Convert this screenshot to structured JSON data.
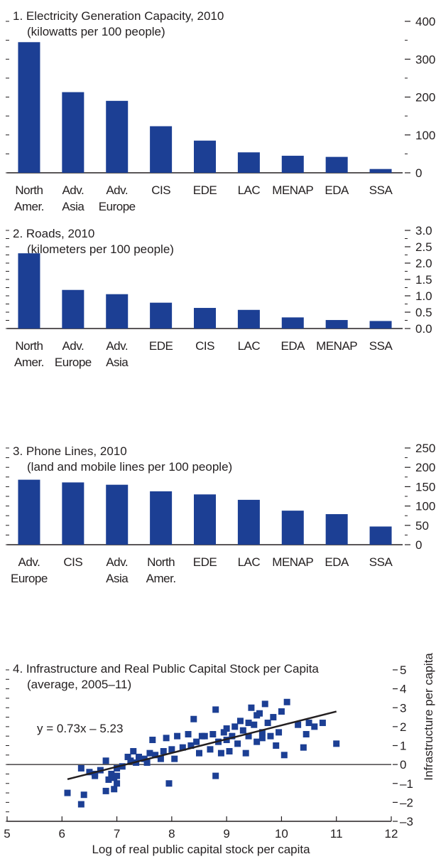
{
  "colors": {
    "bar": "#1c3f94",
    "point": "#1c3f94",
    "axis": "#231f20",
    "fit": "#231f20"
  },
  "chart_data": [
    {
      "type": "bar",
      "title": "1. Electricity Generation Capacity, 2010",
      "subtitle": "(kilowatts per 100 people)",
      "categories": [
        [
          "North",
          "Amer."
        ],
        [
          "Adv.",
          "Asia"
        ],
        [
          "Adv.",
          "Europe"
        ],
        [
          "CIS"
        ],
        [
          "EDE"
        ],
        [
          "LAC"
        ],
        [
          "MENAP"
        ],
        [
          "EDA"
        ],
        [
          "SSA"
        ]
      ],
      "values": [
        345,
        213,
        190,
        123,
        85,
        54,
        45,
        42,
        10
      ],
      "ylim": [
        0,
        400
      ],
      "yticks": [
        "0",
        "100",
        "200",
        "300",
        "400"
      ]
    },
    {
      "type": "bar",
      "title": "2. Roads, 2010",
      "subtitle": "(kilometers per 100 people)",
      "categories": [
        [
          "North",
          "Amer."
        ],
        [
          "Adv.",
          "Europe"
        ],
        [
          "Adv.",
          "Asia"
        ],
        [
          "EDE"
        ],
        [
          "CIS"
        ],
        [
          "LAC"
        ],
        [
          "EDA"
        ],
        [
          "MENAP"
        ],
        [
          "SSA"
        ]
      ],
      "values": [
        2.3,
        1.18,
        1.05,
        0.79,
        0.63,
        0.57,
        0.34,
        0.26,
        0.23
      ],
      "ylim": [
        0,
        3
      ],
      "yticks": [
        "0.0",
        "0.5",
        "1.0",
        "1.5",
        "2.0",
        "2.5",
        "3.0"
      ]
    },
    {
      "type": "bar",
      "title": "3. Phone Lines, 2010",
      "subtitle": "(land and mobile lines per 100 people)",
      "categories": [
        [
          "Adv.",
          "Europe"
        ],
        [
          "CIS"
        ],
        [
          "Adv.",
          "Asia"
        ],
        [
          "North",
          "Amer."
        ],
        [
          "EDE"
        ],
        [
          "LAC"
        ],
        [
          "MENAP"
        ],
        [
          "EDA"
        ],
        [
          "SSA"
        ]
      ],
      "values": [
        168,
        161,
        155,
        138,
        130,
        116,
        88,
        79,
        47
      ],
      "ylim": [
        0,
        250
      ],
      "yticks": [
        "0",
        "50",
        "100",
        "150",
        "200",
        "250"
      ]
    },
    {
      "type": "scatter",
      "title": "4. Infrastructure and Real Public Capital Stock per Capita",
      "subtitle": "(average, 2005–11)",
      "xlabel": "Log of real public capital stock per capita",
      "ylabel": "Infrastructure per capita",
      "annotation": "y = 0.73x – 5.23",
      "xlim": [
        5,
        12
      ],
      "ylim": [
        -3,
        5
      ],
      "xticks": [
        "5",
        "6",
        "7",
        "8",
        "9",
        "10",
        "11",
        "12"
      ],
      "yticks": [
        "–3",
        "–2",
        "–1",
        "0",
        "1",
        "2",
        "3",
        "4",
        "5"
      ],
      "fit": {
        "slope": 0.73,
        "intercept": -5.23,
        "x": [
          6.1,
          11.0
        ]
      },
      "points": [
        [
          6.1,
          -1.5
        ],
        [
          6.35,
          -2.1
        ],
        [
          6.4,
          -1.6
        ],
        [
          6.35,
          -0.2
        ],
        [
          6.5,
          -0.4
        ],
        [
          6.6,
          -0.5
        ],
        [
          6.7,
          -0.3
        ],
        [
          6.8,
          0.2
        ],
        [
          6.85,
          -0.8
        ],
        [
          6.9,
          -0.5
        ],
        [
          6.95,
          -0.7
        ],
        [
          7.0,
          -0.2
        ],
        [
          7.0,
          -1.0
        ],
        [
          6.95,
          -1.3
        ],
        [
          6.8,
          -1.4
        ],
        [
          7.0,
          -0.6
        ],
        [
          7.1,
          -0.1
        ],
        [
          7.2,
          0.4
        ],
        [
          7.25,
          0.2
        ],
        [
          7.3,
          0.7
        ],
        [
          7.4,
          0.4
        ],
        [
          7.5,
          0.3
        ],
        [
          7.55,
          0.1
        ],
        [
          7.6,
          0.6
        ],
        [
          7.65,
          1.3
        ],
        [
          7.7,
          0.5
        ],
        [
          7.8,
          0.3
        ],
        [
          7.85,
          0.7
        ],
        [
          7.9,
          1.4
        ],
        [
          7.95,
          -1.0
        ],
        [
          8.0,
          0.8
        ],
        [
          8.05,
          0.3
        ],
        [
          8.1,
          1.5
        ],
        [
          8.2,
          0.9
        ],
        [
          8.3,
          1.6
        ],
        [
          8.35,
          1.0
        ],
        [
          8.4,
          2.4
        ],
        [
          8.45,
          1.2
        ],
        [
          8.5,
          0.6
        ],
        [
          8.6,
          1.5
        ],
        [
          8.7,
          0.8
        ],
        [
          8.75,
          1.6
        ],
        [
          8.8,
          2.9
        ],
        [
          8.8,
          -0.6
        ],
        [
          8.85,
          1.2
        ],
        [
          8.9,
          0.6
        ],
        [
          8.95,
          1.7
        ],
        [
          9.0,
          1.3
        ],
        [
          9.05,
          0.7
        ],
        [
          9.1,
          1.5
        ],
        [
          9.15,
          2.0
        ],
        [
          9.2,
          1.1
        ],
        [
          9.25,
          2.3
        ],
        [
          9.3,
          1.8
        ],
        [
          9.35,
          0.6
        ],
        [
          9.4,
          1.5
        ],
        [
          9.45,
          3.0
        ],
        [
          9.5,
          2.1
        ],
        [
          9.55,
          1.2
        ],
        [
          9.6,
          2.7
        ],
        [
          9.65,
          1.7
        ],
        [
          9.7,
          3.2
        ],
        [
          9.75,
          2.2
        ],
        [
          9.8,
          1.5
        ],
        [
          9.85,
          2.5
        ],
        [
          9.9,
          1.0
        ],
        [
          9.95,
          1.7
        ],
        [
          10.0,
          2.8
        ],
        [
          10.05,
          0.5
        ],
        [
          10.1,
          3.3
        ],
        [
          10.3,
          2.1
        ],
        [
          10.4,
          0.9
        ],
        [
          10.45,
          1.6
        ],
        [
          10.5,
          2.2
        ],
        [
          10.6,
          2.0
        ],
        [
          10.75,
          2.2
        ],
        [
          11.0,
          1.1
        ],
        [
          9.4,
          2.2
        ],
        [
          9.65,
          1.4
        ],
        [
          9.55,
          2.6
        ],
        [
          9.0,
          1.9
        ],
        [
          8.55,
          1.5
        ],
        [
          7.35,
          0.1
        ],
        [
          6.6,
          -0.6
        ]
      ]
    }
  ]
}
